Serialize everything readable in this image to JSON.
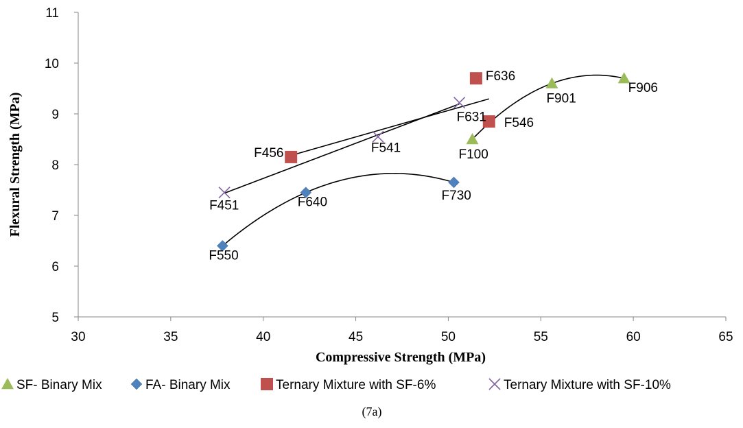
{
  "chart_data": {
    "type": "scatter",
    "xlabel": "Compressive Strength (MPa)",
    "ylabel": "Flexural Strength (MPa)",
    "xlim": [
      30,
      65
    ],
    "ylim": [
      5,
      11
    ],
    "xticks": [
      30,
      35,
      40,
      45,
      50,
      55,
      60,
      65
    ],
    "yticks": [
      5,
      6,
      7,
      8,
      9,
      10,
      11
    ],
    "grid": false,
    "legend_position": "bottom",
    "caption": "(7a)",
    "series": [
      {
        "name": "SF- Binary Mix",
        "marker": "triangle",
        "color": "#9BBB59",
        "points": [
          {
            "x": 51.3,
            "y": 8.5,
            "label": "F100"
          },
          {
            "x": 55.6,
            "y": 9.6,
            "label": "F901"
          },
          {
            "x": 59.5,
            "y": 9.7,
            "label": "F906"
          }
        ],
        "trendline": {
          "kind": "poly2",
          "from": 51.3,
          "to": 59.5
        }
      },
      {
        "name": "FA- Binary Mix",
        "marker": "diamond",
        "color": "#4F81BD",
        "points": [
          {
            "x": 37.8,
            "y": 6.4,
            "label": "F550"
          },
          {
            "x": 42.3,
            "y": 7.45,
            "label": "F640"
          },
          {
            "x": 50.3,
            "y": 7.65,
            "label": "F730"
          }
        ],
        "trendline": {
          "kind": "poly2",
          "from": 37.8,
          "to": 50.3
        }
      },
      {
        "name": "Ternary Mixture with SF-6%",
        "marker": "square",
        "color": "#C0504D",
        "points": [
          {
            "x": 41.5,
            "y": 8.15,
            "label": "F456"
          },
          {
            "x": 51.5,
            "y": 9.7,
            "label": "F636"
          },
          {
            "x": 52.2,
            "y": 8.85,
            "label": "F546"
          }
        ],
        "trendline": {
          "kind": "linear",
          "from": 41.5,
          "to": 52.2
        }
      },
      {
        "name": "Ternary Mixture with SF-10%",
        "marker": "x",
        "color": "#8064A2",
        "points": [
          {
            "x": 37.9,
            "y": 7.45,
            "label": "F451"
          },
          {
            "x": 46.2,
            "y": 8.55,
            "label": "F541"
          },
          {
            "x": 50.6,
            "y": 9.22,
            "label": "F631"
          }
        ],
        "trendline": {
          "kind": "linear",
          "from": 37.9,
          "to": 50.6
        }
      }
    ]
  }
}
